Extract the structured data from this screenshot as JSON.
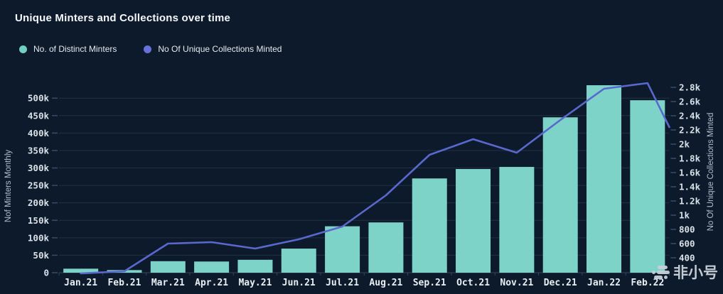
{
  "title": "Unique Minters and Collections over time",
  "legend": [
    {
      "label": "No. of Distinct Minters",
      "color": "#6fcfc0"
    },
    {
      "label": "No Of Unique Collections Minted",
      "color": "#6671da"
    }
  ],
  "watermark": {
    "text": "非小号",
    "logo": "feixiaohao-logo"
  },
  "chart_data": {
    "type": "bar",
    "title": "Unique Minters and Collections over time",
    "categories": [
      "Jan.21",
      "Feb.21",
      "Mar.21",
      "Apr.21",
      "May.21",
      "Jun.21",
      "Jul.21",
      "Aug.21",
      "Sep.21",
      "Oct.21",
      "Nov.21",
      "Dec.21",
      "Jan.22",
      "Feb.22"
    ],
    "series": [
      {
        "name": "No. of Distinct Minters",
        "type": "bar",
        "axis": "left",
        "color": "#7ed3c8",
        "values": [
          11500,
          7500,
          33000,
          32000,
          37000,
          69000,
          133000,
          144000,
          270000,
          297000,
          303000,
          445000,
          537000,
          494000
        ]
      },
      {
        "name": "No Of Unique Collections Minted",
        "type": "line",
        "axis": "right",
        "color": "#5a68ce",
        "values": [
          180,
          210,
          600,
          620,
          530,
          660,
          840,
          1280,
          1850,
          2070,
          1880,
          2340,
          2780,
          2860
        ],
        "clipped_tail_value": 2240
      }
    ],
    "left_axis": {
      "label": "Nof Minters Monthly",
      "tick_values": [
        0,
        50000,
        100000,
        150000,
        200000,
        250000,
        300000,
        350000,
        400000,
        450000,
        500000
      ],
      "tick_labels": [
        "0",
        "50k",
        "100k",
        "150k",
        "200k",
        "250k",
        "300k",
        "350k",
        "400k",
        "450k",
        "500k"
      ],
      "min": 0,
      "max": 500000
    },
    "right_axis": {
      "label": "No Of Unique Collections Minted",
      "tick_values": [
        400,
        600,
        800,
        1000,
        1200,
        1400,
        1600,
        1800,
        2000,
        2200,
        2400,
        2600,
        2800
      ],
      "tick_labels": [
        "400",
        "600",
        "800",
        "1k",
        "1.2k",
        "1.4k",
        "1.6k",
        "1.8k",
        "2k",
        "2.2k",
        "2.4k",
        "2.6k",
        "2.8k"
      ],
      "min": 400,
      "max": 2800
    },
    "grid": true,
    "legend_position": "top-left",
    "colors": {
      "background": "#0d1a2b",
      "gridline": "rgba(140,190,205,0.15)",
      "baseline": "rgba(140,190,205,0.28)",
      "tick_text": "#d9e0e7",
      "axis_title_text": "#b3bfca"
    }
  }
}
